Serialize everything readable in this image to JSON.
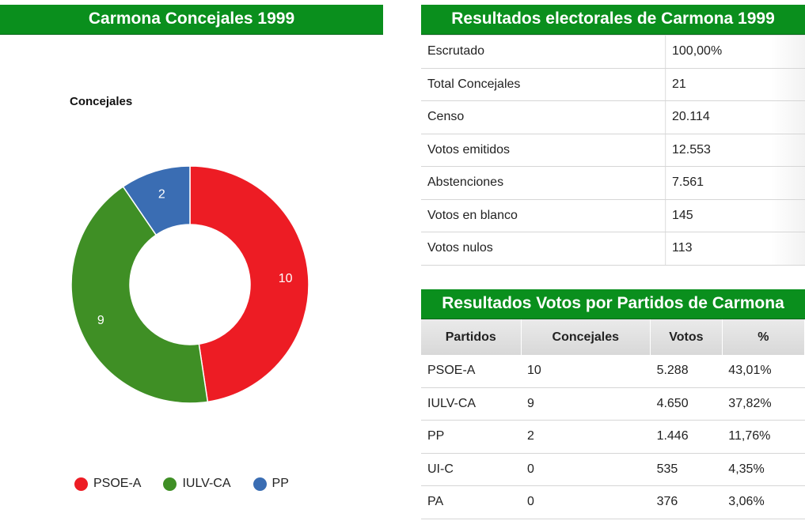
{
  "left_panel": {
    "title": "Carmona Concejales 1999"
  },
  "chart_data": {
    "type": "pie",
    "subtype": "donut",
    "title": "Concejales",
    "categories": [
      "PSOE-A",
      "IULV-CA",
      "PP"
    ],
    "values": [
      10,
      9,
      2
    ],
    "colors": [
      "#ed1c24",
      "#3f8f25",
      "#3a6db3"
    ],
    "data_labels": [
      "10",
      "9",
      "2"
    ],
    "legend": "bottom",
    "start_angle_deg": 0
  },
  "summary": {
    "title": "Resultados electorales de Carmona 1999",
    "rows": [
      {
        "label": "Escrutado",
        "value": "100,00%"
      },
      {
        "label": "Total Concejales",
        "value": "21"
      },
      {
        "label": "Censo",
        "value": "20.114"
      },
      {
        "label": "Votos emitidos",
        "value": "12.553"
      },
      {
        "label": "Abstenciones",
        "value": "7.561"
      },
      {
        "label": "Votos en blanco",
        "value": "145"
      },
      {
        "label": "Votos nulos",
        "value": "113"
      }
    ]
  },
  "parties": {
    "title": "Resultados Votos por Partidos de Carmona",
    "headers": [
      "Partidos",
      "Concejales",
      "Votos",
      "%"
    ],
    "rows": [
      [
        "PSOE-A",
        "10",
        "5.288",
        "43,01%"
      ],
      [
        "IULV-CA",
        "9",
        "4.650",
        "37,82%"
      ],
      [
        "PP",
        "2",
        "1.446",
        "11,76%"
      ],
      [
        "UI-C",
        "0",
        "535",
        "4,35%"
      ],
      [
        "PA",
        "0",
        "376",
        "3,06%"
      ]
    ]
  }
}
